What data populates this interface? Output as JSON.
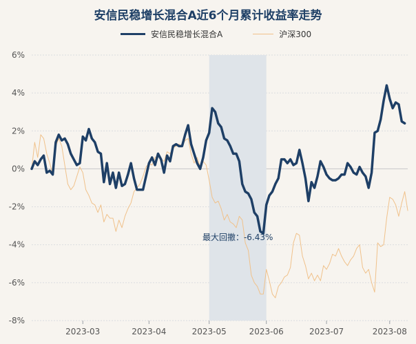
{
  "title": "安信民稳增长混合A近6个月累计收益率走势",
  "legend": {
    "main": "安信民稳增长混合A",
    "index": "沪深300"
  },
  "colors": {
    "main": "#1e3f66",
    "index": "#f0c18a",
    "shade": "#dfe4e9",
    "grid": "#dadcdf",
    "zero": "#c6c7c8"
  },
  "chart_data": {
    "type": "line",
    "title": "安信民稳增长混合A近6个月累计收益率走势",
    "xlabel": "",
    "ylabel": "",
    "ylim": [
      -8,
      6
    ],
    "yticks": [
      6,
      4,
      2,
      0,
      -2,
      -4,
      -6,
      -8
    ],
    "ytick_labels": [
      "6%",
      "4%",
      "2%",
      "0%",
      "-2%",
      "-4%",
      "-6%",
      "-8%"
    ],
    "xrange": [
      0,
      125
    ],
    "xtick_positions": [
      17,
      39,
      59,
      78,
      98,
      119
    ],
    "xtick_labels": [
      "2023-03",
      "2023-04",
      "2023-05",
      "2023-06",
      "2023-07",
      "2023-08"
    ],
    "drawdown": {
      "start": 59,
      "end": 78,
      "label": "最大回撤：-6.43%"
    },
    "series": [
      {
        "name": "安信民稳增长混合A",
        "values": [
          0,
          0.4,
          0.2,
          0.5,
          0.7,
          -0.2,
          -0.1,
          -0.3,
          1.4,
          1.8,
          1.5,
          1.6,
          1.3,
          0.8,
          0.5,
          0.2,
          0.3,
          1.7,
          1.5,
          2.1,
          1.6,
          1.4,
          0.9,
          0.8,
          -0.7,
          0.3,
          -0.8,
          -0.2,
          -1.0,
          -0.2,
          -0.9,
          -0.8,
          -0.3,
          0.3,
          -0.5,
          -1.1,
          -1.1,
          -1.1,
          -0.4,
          0.3,
          0.6,
          0.2,
          0.8,
          0.5,
          -0.2,
          0.7,
          0.4,
          1.2,
          1.3,
          1.2,
          1.2,
          1.8,
          2.3,
          1.3,
          0.8,
          0.3,
          0.0,
          0.6,
          1.5,
          1.9,
          3.2,
          3.0,
          2.4,
          2.2,
          1.6,
          1.5,
          1.2,
          0.8,
          0.8,
          0.4,
          -0.8,
          -1.2,
          -1.3,
          -1.6,
          -2.3,
          -2.5,
          -3.3,
          -3.4,
          -1.9,
          -1.4,
          -1.2,
          -0.8,
          -0.5,
          0.5,
          0.5,
          0.3,
          0.5,
          0.2,
          0.3,
          1.0,
          0.3,
          -0.5,
          -1.7,
          -0.7,
          -1.0,
          -0.4,
          0.4,
          0.1,
          -0.3,
          -0.5,
          -0.6,
          -0.6,
          -0.5,
          -0.3,
          -0.3,
          0.3,
          0.1,
          -0.2,
          -0.3,
          0.1,
          -0.2,
          -0.4,
          -1.0,
          -0.2,
          1.9,
          2.0,
          2.6,
          3.6,
          4.4,
          3.7,
          3.2,
          3.5,
          3.4,
          2.5,
          2.4
        ]
      },
      {
        "name": "沪深300",
        "values": [
          0,
          1.4,
          0.6,
          1.8,
          1.6,
          0.8,
          0.3,
          -0.3,
          1.2,
          1.6,
          1.2,
          0.2,
          -0.8,
          -1.1,
          -0.9,
          -0.4,
          0.1,
          -0.2,
          -1.1,
          -1.4,
          -1.8,
          -1.9,
          -2.3,
          -1.9,
          -2.8,
          -2.4,
          -2.6,
          -2.6,
          -3.3,
          -2.7,
          -3.1,
          -2.5,
          -2.1,
          -1.8,
          -1.2,
          -1.0,
          -0.8,
          -0.4,
          0.1,
          0.3,
          0.2,
          0.6,
          0.7,
          0.5,
          0.4,
          0.9,
          0.8,
          1.1,
          1.2,
          1.3,
          1.2,
          1.5,
          1.6,
          0.8,
          0.3,
          0.6,
          0.1,
          0.4,
          0.2,
          -0.6,
          -1.5,
          -1.8,
          -1.7,
          -2.1,
          -2.7,
          -2.4,
          -2.8,
          -2.9,
          -3.1,
          -2.5,
          -2.7,
          -3.9,
          -4.3,
          -5.6,
          -6.0,
          -6.2,
          -6.6,
          -6.6,
          -5.3,
          -5.9,
          -6.6,
          -6.8,
          -6.2,
          -6.0,
          -5.7,
          -5.6,
          -5.2,
          -3.9,
          -3.4,
          -3.5,
          -4.6,
          -5.1,
          -5.8,
          -5.5,
          -5.9,
          -5.6,
          -5.9,
          -5.1,
          -5.3,
          -5.0,
          -4.5,
          -4.6,
          -4.2,
          -4.6,
          -4.9,
          -5.1,
          -4.8,
          -4.6,
          -4.2,
          -4.0,
          -5.2,
          -5.5,
          -5.3,
          -6.0,
          -6.5,
          -3.9,
          -4.1,
          -4.0,
          -2.6,
          -1.5,
          -1.6,
          -1.9,
          -2.5,
          -1.8,
          -1.2,
          -2.2
        ]
      }
    ]
  }
}
